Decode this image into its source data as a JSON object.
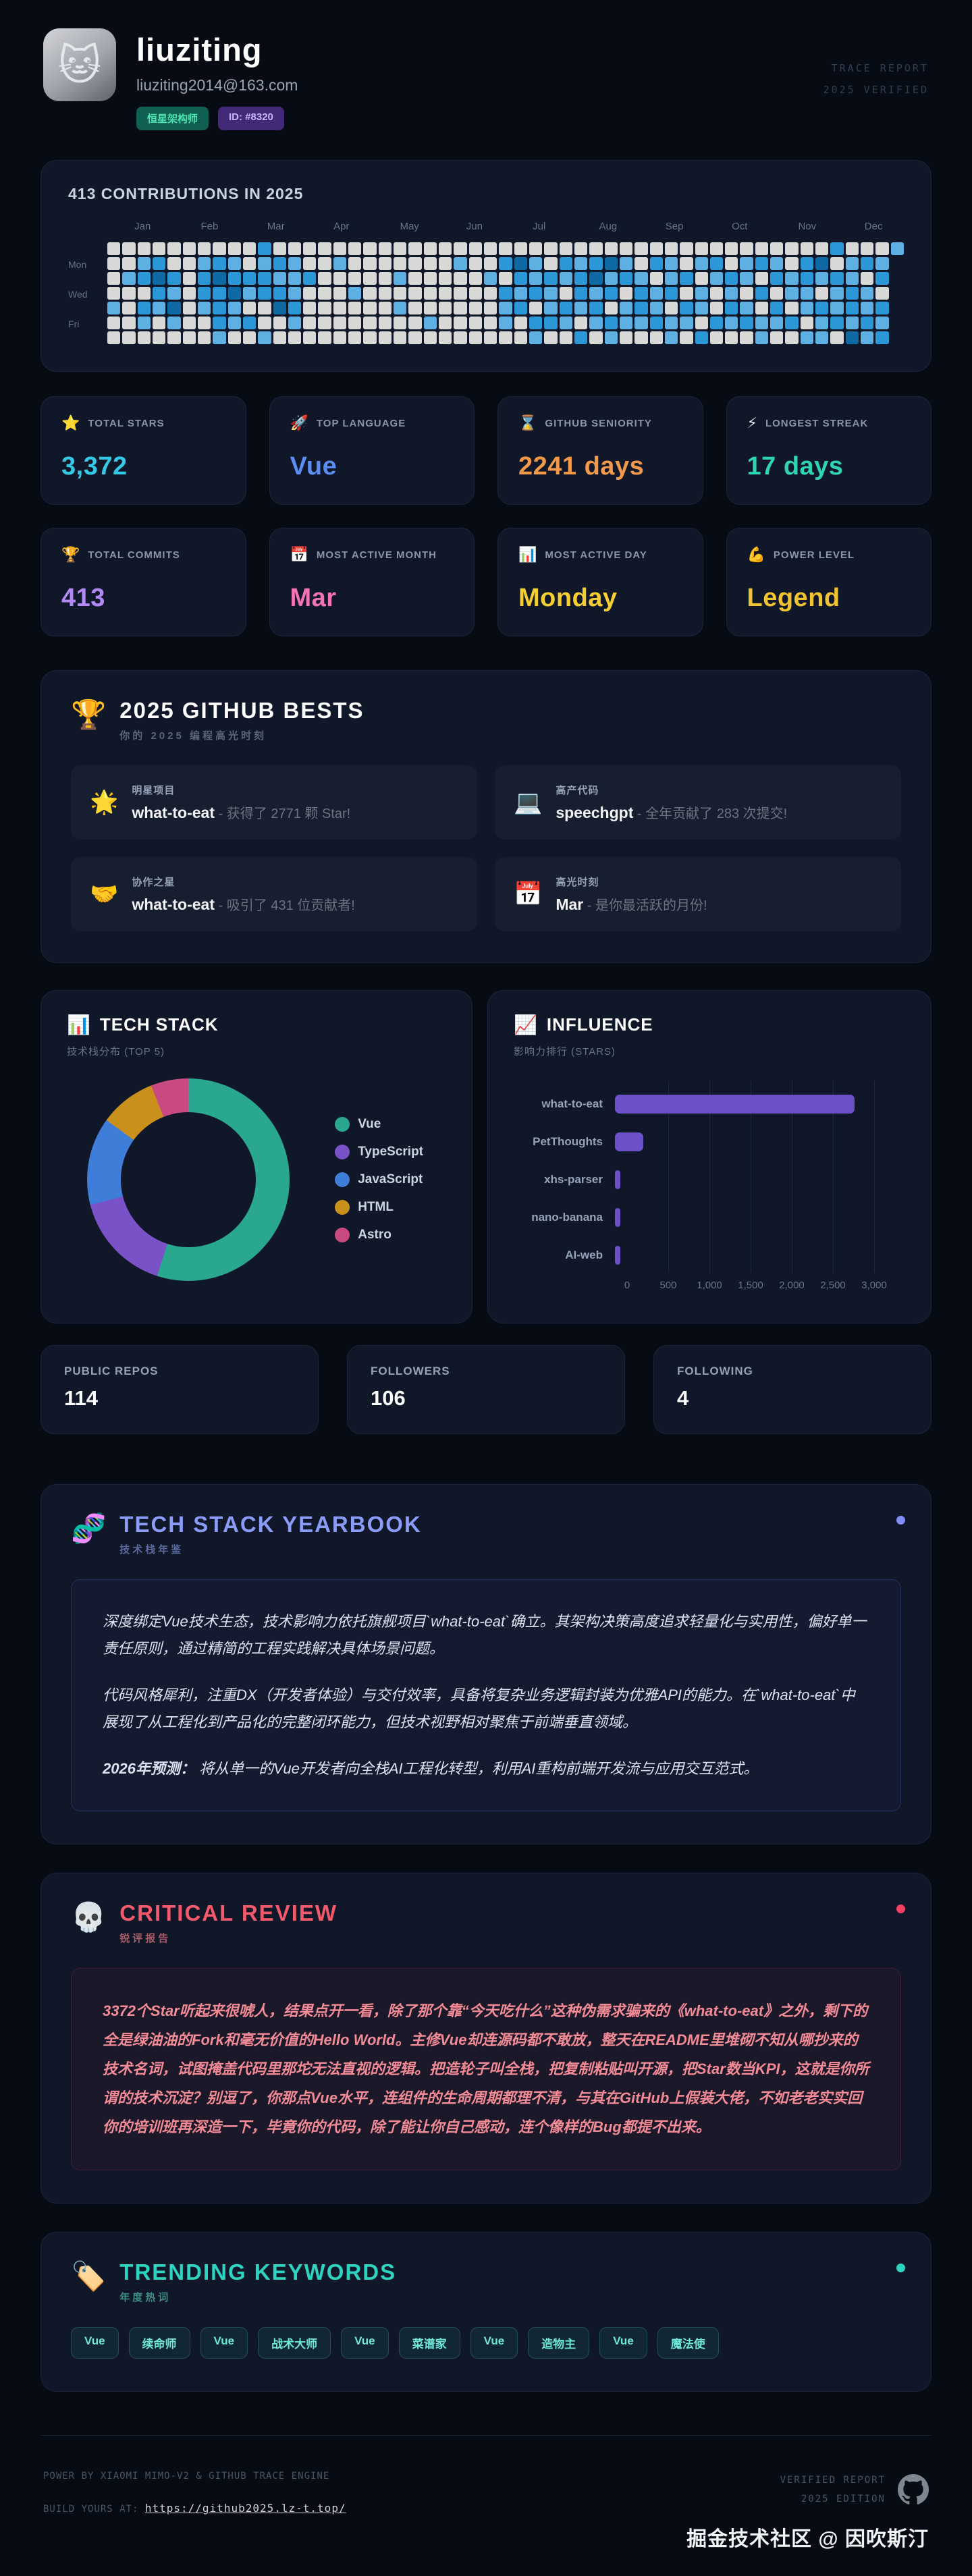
{
  "header": {
    "avatar_emoji": "🐱",
    "name": "liuziting",
    "email": "liuziting2014@163.com",
    "badge_role": "恒星架构师",
    "badge_id": "ID: #8320",
    "stamp_line1": "TRACE REPORT",
    "stamp_line2": "2025 VERIFIED"
  },
  "contributions": {
    "title": "413 CONTRIBUTIONS IN 2025"
  },
  "stats": [
    {
      "icon": "⭐",
      "icon_name": "star-icon",
      "label": "TOTAL STARS",
      "value": "3,372",
      "color": "#35c9e8"
    },
    {
      "icon": "🚀",
      "icon_name": "rocket-icon",
      "label": "TOP LANGUAGE",
      "value": "Vue",
      "color": "#5b8ef5"
    },
    {
      "icon": "⌛",
      "icon_name": "hourglass-icon",
      "label": "GITHUB SENIORITY",
      "value": "2241 days",
      "color": "#f29a4a"
    },
    {
      "icon": "⚡",
      "icon_name": "lightning-icon",
      "label": "LONGEST STREAK",
      "value": "17 days",
      "color": "#2fd4b5"
    },
    {
      "icon": "🏆",
      "icon_name": "trophy-icon",
      "label": "TOTAL COMMITS",
      "value": "413",
      "color": "#b389f7"
    },
    {
      "icon": "📅",
      "icon_name": "calendar-icon",
      "label": "MOST ACTIVE MONTH",
      "value": "Mar",
      "color": "#f574b5"
    },
    {
      "icon": "📊",
      "icon_name": "bar-chart-icon",
      "label": "MOST ACTIVE DAY",
      "value": "Monday",
      "color": "#f5ce31"
    },
    {
      "icon": "💪",
      "icon_name": "muscle-icon",
      "label": "POWER LEVEL",
      "value": "Legend",
      "color": "#f0c331"
    }
  ],
  "bests": {
    "icon": "🏆",
    "title": "2025 GITHUB BESTS",
    "subtitle": "你的 2025 编程高光时刻",
    "items": [
      {
        "icon": "🌟",
        "icon_name": "glowing-star-icon",
        "tag": "明星项目",
        "name": "what-to-eat",
        "desc": " - 获得了 2771 颗 Star!"
      },
      {
        "icon": "💻",
        "icon_name": "laptop-icon",
        "tag": "高产代码",
        "name": "speechgpt",
        "desc": " - 全年贡献了 283 次提交!"
      },
      {
        "icon": "🤝",
        "icon_name": "handshake-icon",
        "tag": "协作之星",
        "name": "what-to-eat",
        "desc": " - 吸引了 431 位贡献者!"
      },
      {
        "icon": "📅",
        "icon_name": "calendar-icon",
        "tag": "高光时刻",
        "name": "Mar",
        "desc": " - 是你最活跃的月份!"
      }
    ]
  },
  "tech_stack_card": {
    "icon": "📊",
    "title": "TECH STACK",
    "subtitle": "技术栈分布 (TOP 5)"
  },
  "influence_card": {
    "icon": "📈",
    "title": "INFLUENCE",
    "subtitle": "影响力排行 (STARS)"
  },
  "profile_stats": [
    {
      "label": "PUBLIC REPOS",
      "value": "114"
    },
    {
      "label": "FOLLOWERS",
      "value": "106"
    },
    {
      "label": "FOLLOWING",
      "value": "4"
    }
  ],
  "yearbook": {
    "icon": "🧬",
    "title": "TECH STACK YEARBOOK",
    "subtitle": "技术栈年鉴",
    "accent": "#818cf8",
    "paragraph1": "深度绑定Vue技术生态，技术影响力依托旗舰项目`what-to-eat`确立。其架构决策高度追求轻量化与实用性，偏好单一责任原则，通过精简的工程实践解决具体场景问题。",
    "paragraph2": "代码风格犀利，注重DX（开发者体验）与交付效率，具备将复杂业务逻辑封装为优雅API的能力。在`what-to-eat`中展现了从工程化到产品化的完整闭环能力，但技术视野相对聚焦于前端垂直领域。",
    "prediction_label": "2026年预测：",
    "prediction_text": " 将从单一的Vue开发者向全栈AI工程化转型，利用AI重构前端开发流与应用交互范式。"
  },
  "review": {
    "icon": "💀",
    "title": "CRITICAL REVIEW",
    "subtitle": "锐评报告",
    "accent": "#f43f5e",
    "text": "3372个Star听起来很唬人，结果点开一看，除了那个靠“今天吃什么”这种伪需求骗来的《what-to-eat》之外，剩下的全是绿油油的Fork和毫无价值的Hello World。主修Vue却连源码都不敢放，整天在README里堆砌不知从哪抄来的技术名词，试图掩盖代码里那坨无法直视的逻辑。把造轮子叫全栈，把复制粘贴叫开源，把Star数当KPI，这就是你所谓的技术沉淀？别逗了，你那点Vue水平，连组件的生命周期都理不清，与其在GitHub上假装大佬，不如老老实实回你的培训班再深造一下，毕竟你的代码，除了能让你自己感动，连个像样的Bug都提不出来。"
  },
  "keywords": {
    "icon": "🏷️",
    "title": "TRENDING KEYWORDS",
    "subtitle": "年度热词",
    "accent": "#2dd4bf",
    "tags": [
      "Vue",
      "续命师",
      "Vue",
      "战术大师",
      "Vue",
      "菜谱家",
      "Vue",
      "造物主",
      "Vue",
      "魔法使"
    ]
  },
  "footer": {
    "powered": "POWER BY XIAOMI MIMO-V2 & GITHUB TRACE ENGINE",
    "build_label": "BUILD YOURS AT: ",
    "build_url": "https://github2025.lz-t.top/",
    "verified_line1": "VERIFIED REPORT",
    "verified_line2": "2025 EDITION",
    "watermark": "掘金技术社区 @ 因吹斯汀"
  },
  "chart_data": [
    {
      "type": "heatmap",
      "title": "413 CONTRIBUTIONS IN 2025",
      "month_labels": [
        "Jan",
        "Feb",
        "Mar",
        "Apr",
        "May",
        "Jun",
        "Jul",
        "Aug",
        "Sep",
        "Oct",
        "Nov",
        "Dec"
      ],
      "day_labels": [
        {
          "label": "Mon",
          "row": 1
        },
        {
          "label": "Wed",
          "row": 3
        },
        {
          "label": "Fri",
          "row": 5
        }
      ],
      "level_colors": {
        "0": "#d8d8d6",
        "1": "#5fb0e2",
        "2": "#2b97d6",
        "3": "#0f6aa3"
      },
      "weeks": [
        "0000100",
        "0010000",
        "0120210",
        "0232100",
        "0021310",
        "0000000",
        "0122100",
        "0232221",
        "0123110",
        "0021020",
        "2122001",
        "0212300",
        "0111210",
        "0020000",
        "0000000",
        "0100000",
        "0001000",
        "0000000",
        "0000000",
        "0010100",
        "0000000",
        "0000010",
        "0000000",
        "0100000",
        "0000000",
        "0010000",
        "0202110",
        "0321200",
        "0112021",
        "0021120",
        "0210210",
        "0122102",
        "0231210",
        "0312021",
        "0120110",
        "0012210",
        "0201120",
        "0112011",
        "0020210",
        "0101102",
        "0210020",
        "0021210",
        "0110120",
        "0202011",
        "0120210",
        "0011020",
        "0221101",
        "0310211",
        "2021120",
        "0112213",
        "0201121",
        "0120212",
        "1xxxxxx"
      ]
    },
    {
      "type": "pie",
      "title": "TECH STACK — 技术栈分布 (TOP 5)",
      "labels": [
        "Vue",
        "TypeScript",
        "JavaScript",
        "HTML",
        "Astro"
      ],
      "values": [
        55,
        16,
        14,
        9,
        6
      ],
      "colors": [
        "#2aa78f",
        "#7a52c7",
        "#3f7ed8",
        "#c9911c",
        "#c84a80"
      ],
      "legend_position": "right",
      "donut": true
    },
    {
      "type": "bar",
      "title": "INFLUENCE — 影响力排行 (STARS)",
      "orientation": "horizontal",
      "categories": [
        "what-to-eat",
        "PetThoughts",
        "xhs-parser",
        "nano-banana",
        "AI-web"
      ],
      "values": [
        2771,
        330,
        55,
        45,
        40
      ],
      "bar_color": "#6b50c8",
      "xlim": [
        0,
        3000
      ],
      "tick_values": [
        0,
        500,
        1000,
        1500,
        2000,
        2500,
        3000
      ],
      "tick_labels": [
        "0",
        "500",
        "1,000",
        "1,500",
        "2,000",
        "2,500",
        "3,000"
      ],
      "grid": true
    }
  ]
}
